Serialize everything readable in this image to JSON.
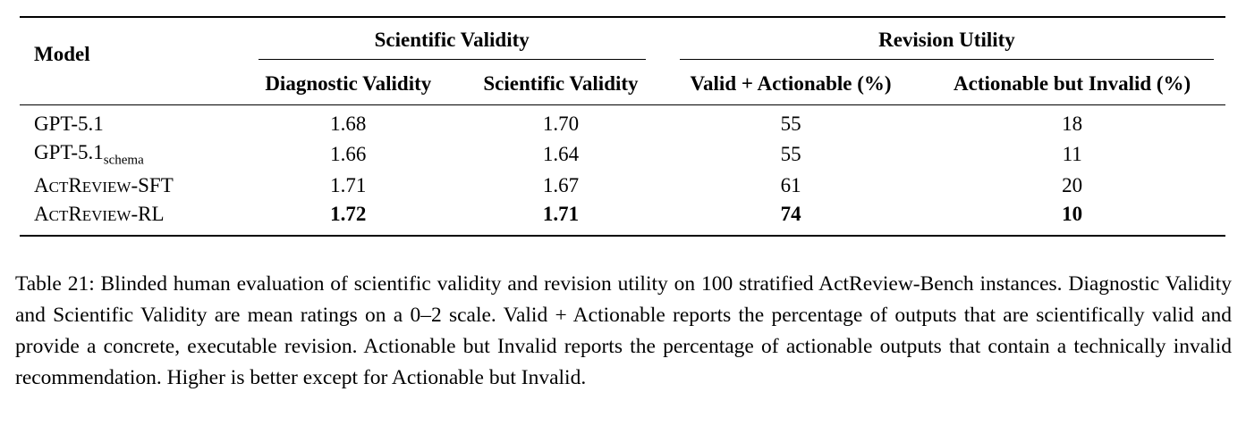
{
  "table": {
    "header": {
      "model": "Model",
      "group_1": "Scientific Validity",
      "group_2": "Revision Utility",
      "columns": [
        "Diagnostic Validity",
        "Scientific Validity",
        "Valid + Actionable (%)",
        "Actionable but Invalid (%)"
      ]
    },
    "rows": [
      {
        "model": {
          "base": "GPT-5.1",
          "sub": ""
        },
        "diagnostic_validity": "1.68",
        "scientific_validity": "1.70",
        "valid_actionable": "55",
        "actionable_invalid": "18"
      },
      {
        "model": {
          "base": "GPT-5.1",
          "sub": "schema"
        },
        "diagnostic_validity": "1.66",
        "scientific_validity": "1.64",
        "valid_actionable": "55",
        "actionable_invalid": "11"
      },
      {
        "model": {
          "sc_a": "A",
          "sc_b": "CT",
          "sc_c": "R",
          "sc_d": "EVIEW",
          "suffix": "-SFT"
        },
        "diagnostic_validity": "1.71",
        "scientific_validity": "1.67",
        "valid_actionable": "61",
        "actionable_invalid": "20"
      },
      {
        "model": {
          "sc_a": "A",
          "sc_b": "CT",
          "sc_c": "R",
          "sc_d": "EVIEW",
          "suffix": "-RL"
        },
        "diagnostic_validity": "1.72",
        "scientific_validity": "1.71",
        "valid_actionable": "74",
        "actionable_invalid": "10"
      }
    ]
  },
  "caption": "Table 21: Blinded human evaluation of scientific validity and revision utility on 100 stratified ActReview-Bench instances. Diagnostic Validity and Scientific Validity are mean ratings on a 0–2 scale. Valid + Actionable reports the percentage of outputs that are scientifically valid and provide a concrete, executable revision. Actionable but Invalid reports the percentage of actionable outputs that contain a technically invalid recommendation. Higher is better except for Actionable but Invalid."
}
